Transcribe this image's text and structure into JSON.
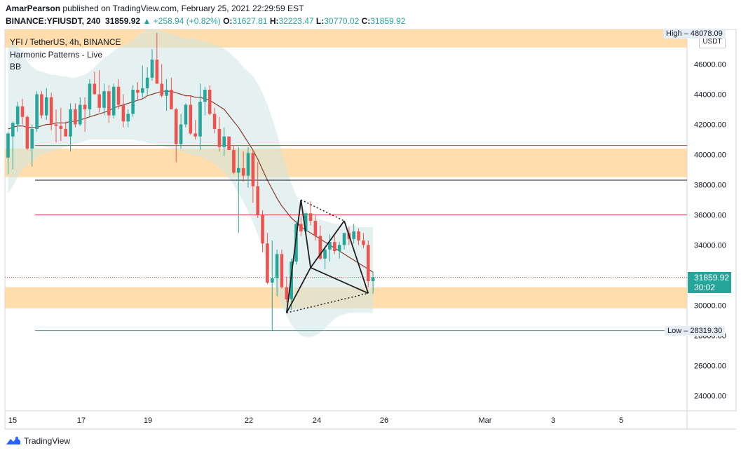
{
  "header": {
    "publisher": "AmarPearson",
    "published_text": "published on TradingView.com, February 25, 2021 22:29:59 EST",
    "symbol": "BINANCE:YFIUSDT, 240",
    "last": "31859.92",
    "change": "▲ +258.94 (+0.82%)",
    "o_label": "O:",
    "o_value": "31627.81",
    "h_label": "H:",
    "h_value": "32223.47",
    "l_label": "L:",
    "l_value": "30770.02",
    "c_label": "C:",
    "c_value": "31859.92"
  },
  "legend": {
    "title": "YFI / TetherUS, 4h, BINANCE",
    "indicator1": "Harmonic Patterns - Live",
    "indicator2": "BB"
  },
  "axis": {
    "currency_button": "USDT",
    "high_label": "High",
    "high_value": "48078.09",
    "low_label": "Low",
    "low_value": "28319.30",
    "last_price": "31859.92",
    "countdown": "30:02"
  },
  "footer": {
    "brand": "TradingView"
  },
  "colors": {
    "up": "#26a69a",
    "down": "#ef5350",
    "zone": "#ffd79e",
    "band": "#cfe5e4",
    "basis": "#8b3a2e"
  },
  "chart_data": {
    "type": "candlestick",
    "ylim": [
      23000,
      48300
    ],
    "y_ticks": [
      24000,
      26000,
      28000,
      30000,
      32000,
      34000,
      36000,
      38000,
      40000,
      42000,
      44000,
      46000
    ],
    "y_tick_labels": [
      "24000.00",
      "26000.00",
      "28000.00",
      "30000.00",
      "32000.00",
      "34000.00",
      "36000.00",
      "38000.00",
      "40000.00",
      "42000.00",
      "44000.00",
      "46000.00"
    ],
    "x_ticks": [
      "15",
      "17",
      "19",
      "22",
      "24",
      "26",
      "Mar",
      "3",
      "5"
    ],
    "candles_ohlc": [
      [
        39800,
        41500,
        38700,
        41400
      ],
      [
        41200,
        42200,
        39000,
        42100
      ],
      [
        42000,
        43500,
        41500,
        43200
      ],
      [
        43200,
        43700,
        42000,
        42500
      ],
      [
        42500,
        42600,
        40300,
        40400
      ],
      [
        40400,
        42000,
        39200,
        41700
      ],
      [
        41700,
        44200,
        41500,
        44000
      ],
      [
        44000,
        44200,
        42400,
        42600
      ],
      [
        42600,
        44400,
        42300,
        43800
      ],
      [
        43800,
        44100,
        41600,
        42000
      ],
      [
        42000,
        43000,
        40800,
        41900
      ],
      [
        41900,
        43100,
        40900,
        41700
      ],
      [
        41700,
        42200,
        41200,
        41200
      ],
      [
        41200,
        43400,
        40200,
        43000
      ],
      [
        43000,
        43400,
        41800,
        42000
      ],
      [
        42000,
        43800,
        41900,
        43300
      ],
      [
        43300,
        43800,
        41500,
        43000
      ],
      [
        43000,
        45000,
        42500,
        44700
      ],
      [
        44700,
        45500,
        44000,
        44000
      ],
      [
        44000,
        45600,
        42800,
        43100
      ],
      [
        43100,
        44700,
        42600,
        44200
      ],
      [
        44200,
        44600,
        42100,
        42600
      ],
      [
        42600,
        44700,
        42400,
        44500
      ],
      [
        44500,
        45000,
        43000,
        43300
      ],
      [
        43300,
        44000,
        41800,
        42200
      ],
      [
        42200,
        43000,
        41800,
        42700
      ],
      [
        42700,
        44600,
        42500,
        44300
      ],
      [
        44300,
        44800,
        43600,
        44100
      ],
      [
        44100,
        45900,
        43800,
        44400
      ],
      [
        44400,
        45800,
        44000,
        45100
      ],
      [
        45100,
        47000,
        44900,
        46300
      ],
      [
        46300,
        48078,
        44700,
        44700
      ],
      [
        44700,
        46000,
        43800,
        43900
      ],
      [
        43900,
        45000,
        42900,
        44300
      ],
      [
        44300,
        45100,
        43000,
        43000
      ],
      [
        43000,
        43100,
        39500,
        40700
      ],
      [
        40700,
        42700,
        40400,
        42000
      ],
      [
        42000,
        43400,
        41800,
        43300
      ],
      [
        43300,
        43900,
        41300,
        41400
      ],
      [
        41400,
        42300,
        41000,
        41200
      ],
      [
        41200,
        44700,
        40300,
        43500
      ],
      [
        43500,
        44500,
        42600,
        44300
      ],
      [
        44300,
        44600,
        42600,
        42700
      ],
      [
        42700,
        43100,
        41400,
        41700
      ],
      [
        41700,
        42500,
        40200,
        40500
      ],
      [
        40500,
        41800,
        39900,
        41200
      ],
      [
        41200,
        40700,
        40300,
        40300
      ],
      [
        40300,
        40600,
        38700,
        38800
      ],
      [
        38800,
        40500,
        34800,
        39100
      ],
      [
        39100,
        40200,
        38200,
        38600
      ],
      [
        38600,
        40500,
        37800,
        40100
      ],
      [
        40100,
        40300,
        36800,
        37900
      ],
      [
        37900,
        39500,
        35800,
        36000
      ],
      [
        36000,
        36300,
        33500,
        34100
      ],
      [
        34100,
        34800,
        31400,
        31500
      ],
      [
        31500,
        34300,
        28319,
        31800
      ],
      [
        31800,
        33700,
        30600,
        33400
      ],
      [
        33400,
        33700,
        31100,
        31200
      ],
      [
        31200,
        31900,
        30200,
        30400
      ],
      [
        30400,
        33100,
        29700,
        32900
      ],
      [
        32900,
        35600,
        32700,
        35400
      ],
      [
        35400,
        35900,
        34600,
        34900
      ],
      [
        34900,
        36100,
        34900,
        36100
      ],
      [
        36100,
        36900,
        35300,
        35600
      ],
      [
        35600,
        36000,
        34300,
        34600
      ],
      [
        34600,
        35300,
        33000,
        33100
      ],
      [
        33100,
        33800,
        32400,
        33700
      ],
      [
        33700,
        34700,
        32900,
        34200
      ],
      [
        34200,
        34600,
        33400,
        33600
      ],
      [
        33600,
        34200,
        33100,
        34000
      ],
      [
        34000,
        34800,
        33700,
        34800
      ],
      [
        34800,
        35200,
        34000,
        34400
      ],
      [
        34400,
        35400,
        34100,
        34900
      ],
      [
        34900,
        35100,
        34000,
        34300
      ],
      [
        34300,
        34800,
        33800,
        34000
      ],
      [
        34000,
        34300,
        31200,
        31600
      ],
      [
        31600,
        32223,
        30770,
        31860
      ]
    ],
    "bollinger": {
      "start_candle": 0,
      "upper": [
        47200,
        47400,
        47200,
        46800,
        46200,
        45800,
        45600,
        45500,
        45400,
        45300,
        45300,
        45200,
        45200,
        45100,
        45100,
        45200,
        45300,
        45500,
        45800,
        46100,
        46400,
        46600,
        46900,
        47100,
        47200,
        47400,
        47600,
        47900,
        48100,
        48300,
        48300,
        48300,
        48200,
        48100,
        48000,
        47900,
        47800,
        47700,
        47700,
        47700,
        47600,
        47500,
        47400,
        47300,
        47200,
        47000,
        46800,
        46500,
        46200,
        45800,
        45500,
        45200,
        44700,
        44100,
        43300,
        42400,
        41400,
        40200,
        39100,
        38100,
        37300,
        36700,
        36300,
        36000,
        35800,
        35700,
        35600,
        35500,
        35400,
        35400,
        35300,
        35300,
        35300,
        35200,
        35200,
        35200,
        35200
      ],
      "basis": [
        41700,
        41800,
        41900,
        41900,
        41800,
        41800,
        41800,
        41900,
        42000,
        42000,
        42100,
        42100,
        42100,
        42200,
        42200,
        42300,
        42400,
        42500,
        42600,
        42700,
        42800,
        42900,
        43100,
        43200,
        43300,
        43400,
        43500,
        43600,
        43700,
        43900,
        44000,
        44100,
        44200,
        44200,
        44200,
        44100,
        44000,
        43900,
        43900,
        43800,
        43800,
        43700,
        43600,
        43400,
        43200,
        43000,
        42600,
        42200,
        41800,
        41300,
        40800,
        40300,
        39700,
        39000,
        38300,
        37700,
        37100,
        36600,
        36200,
        35800,
        35500,
        35200,
        35000,
        34800,
        34600,
        34400,
        34200,
        34000,
        33800,
        33600,
        33400,
        33200,
        33000,
        32800,
        32600,
        32400,
        32200
      ],
      "lower": [
        37400,
        37900,
        38500,
        39000,
        39300,
        39600,
        39800,
        40000,
        40100,
        40200,
        40300,
        40400,
        40500,
        40600,
        40700,
        40800,
        40900,
        41000,
        41000,
        41000,
        41000,
        41000,
        41000,
        41000,
        41000,
        41000,
        41000,
        40900,
        40900,
        40800,
        40700,
        40600,
        40600,
        40500,
        40400,
        40300,
        40200,
        40100,
        40000,
        39900,
        39900,
        39700,
        39600,
        39400,
        39100,
        38800,
        38400,
        38000,
        37400,
        36900,
        36200,
        35500,
        34700,
        33800,
        32800,
        31800,
        30900,
        30000,
        29300,
        28700,
        28300,
        28000,
        27900,
        27900,
        28000,
        28200,
        28500,
        28800,
        29100,
        29300,
        29400,
        29500,
        29500,
        29500,
        29500,
        29500,
        29500
      ]
    },
    "zones": [
      {
        "from": 47100,
        "to": 48300
      },
      {
        "from": 38500,
        "to": 40400
      },
      {
        "from": 29800,
        "to": 31200
      }
    ],
    "hlines": [
      {
        "price": 40600,
        "color": "red"
      },
      {
        "price": 38300,
        "color": "black"
      },
      {
        "price": 36000,
        "color": "red"
      },
      {
        "price": 28319,
        "color": "teal"
      }
    ],
    "harmonic": {
      "points_candle_price": [
        [
          58,
          29500
        ],
        [
          61,
          37000
        ],
        [
          63,
          32500
        ],
        [
          70,
          35600
        ],
        [
          75,
          30800
        ]
      ]
    }
  }
}
